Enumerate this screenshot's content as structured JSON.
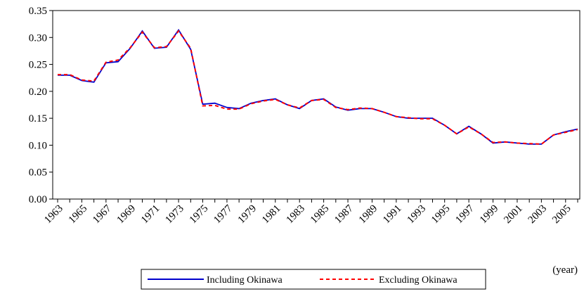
{
  "chart_data": {
    "type": "line",
    "categories": [
      "1963",
      null,
      "1965",
      null,
      "1967",
      null,
      "1969",
      null,
      "1971",
      null,
      "1973",
      null,
      "1975",
      null,
      "1977",
      null,
      "1979",
      null,
      "1981",
      null,
      "1983",
      null,
      "1985",
      null,
      "1987",
      null,
      "1989",
      null,
      "1991",
      null,
      "1993",
      null,
      "1995",
      null,
      "1997",
      null,
      "1999",
      null,
      "2001",
      null,
      "2003",
      null,
      "2005",
      null
    ],
    "series": [
      {
        "name": "Including Okinawa",
        "color": "#0000cc",
        "dash": "solid",
        "values": [
          0.23,
          0.23,
          0.22,
          0.217,
          0.253,
          0.255,
          0.28,
          0.312,
          0.28,
          0.282,
          0.314,
          0.278,
          0.176,
          0.178,
          0.17,
          0.168,
          0.178,
          0.183,
          0.186,
          0.175,
          0.168,
          0.183,
          0.186,
          0.171,
          0.165,
          0.168,
          0.168,
          0.161,
          0.153,
          0.15,
          0.15,
          0.15,
          0.137,
          0.121,
          0.135,
          0.121,
          0.104,
          0.106,
          0.104,
          0.102,
          0.102,
          0.119,
          0.125,
          0.13
        ]
      },
      {
        "name": "Excluding Okinawa",
        "color": "#ff0000",
        "dash": "dashed",
        "values": [
          0.231,
          0.231,
          0.221,
          0.219,
          0.254,
          0.258,
          0.281,
          0.31,
          0.281,
          0.283,
          0.312,
          0.28,
          0.173,
          0.174,
          0.167,
          0.167,
          0.177,
          0.182,
          0.185,
          0.175,
          0.169,
          0.183,
          0.185,
          0.17,
          0.166,
          0.169,
          0.168,
          0.161,
          0.153,
          0.151,
          0.149,
          0.149,
          0.137,
          0.121,
          0.134,
          0.121,
          0.105,
          0.106,
          0.104,
          0.103,
          0.102,
          0.119,
          0.124,
          0.129
        ]
      }
    ],
    "ylim": [
      0,
      0.35
    ],
    "yticks": [
      {
        "value": 0,
        "label": "0.00"
      },
      {
        "value": 0.05,
        "label": "0.05"
      },
      {
        "value": 0.1,
        "label": "0.10"
      },
      {
        "value": 0.15,
        "label": "0.15"
      },
      {
        "value": 0.2,
        "label": "0.20"
      },
      {
        "value": 0.25,
        "label": "0.25"
      },
      {
        "value": 0.3,
        "label": "0.30"
      },
      {
        "value": 0.35,
        "label": "0.35"
      }
    ],
    "x_label": "(year)",
    "legend": "bottom"
  }
}
